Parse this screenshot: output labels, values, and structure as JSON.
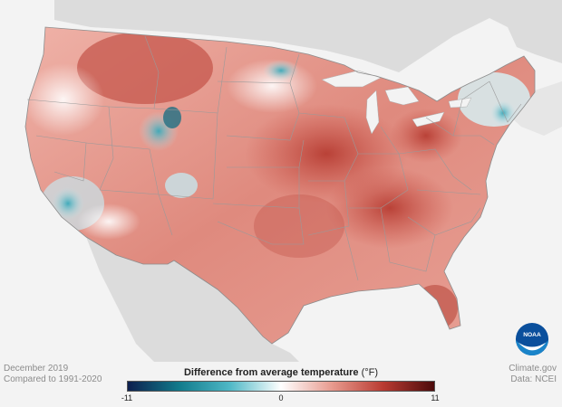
{
  "map": {
    "subject": "Difference from average temperature",
    "period": "December 2019",
    "baseline": "Compared to 1991-2020"
  },
  "legend": {
    "title": "Difference from average temperature",
    "unit": "(°F)",
    "min_label": "-11",
    "mid_label": "0",
    "max_label": "11",
    "min": -11,
    "mid": 0,
    "max": 11,
    "colors": [
      "#0d1f4e",
      "#117a8b",
      "#4fb8c6",
      "#ffffff",
      "#e79a8e",
      "#b93b32",
      "#4c0b0b"
    ]
  },
  "footer": {
    "date": "December 2019",
    "comparison": "Compared to 1991-2020",
    "source": "Climate.gov",
    "data_source": "Data: NCEI"
  },
  "logo": {
    "icon": "noaa-logo",
    "text": "NOAA"
  },
  "colors": {
    "background": "#f3f3f3",
    "neighbor_land": "#dcdcdc",
    "state_border": "#9a9a9a"
  }
}
